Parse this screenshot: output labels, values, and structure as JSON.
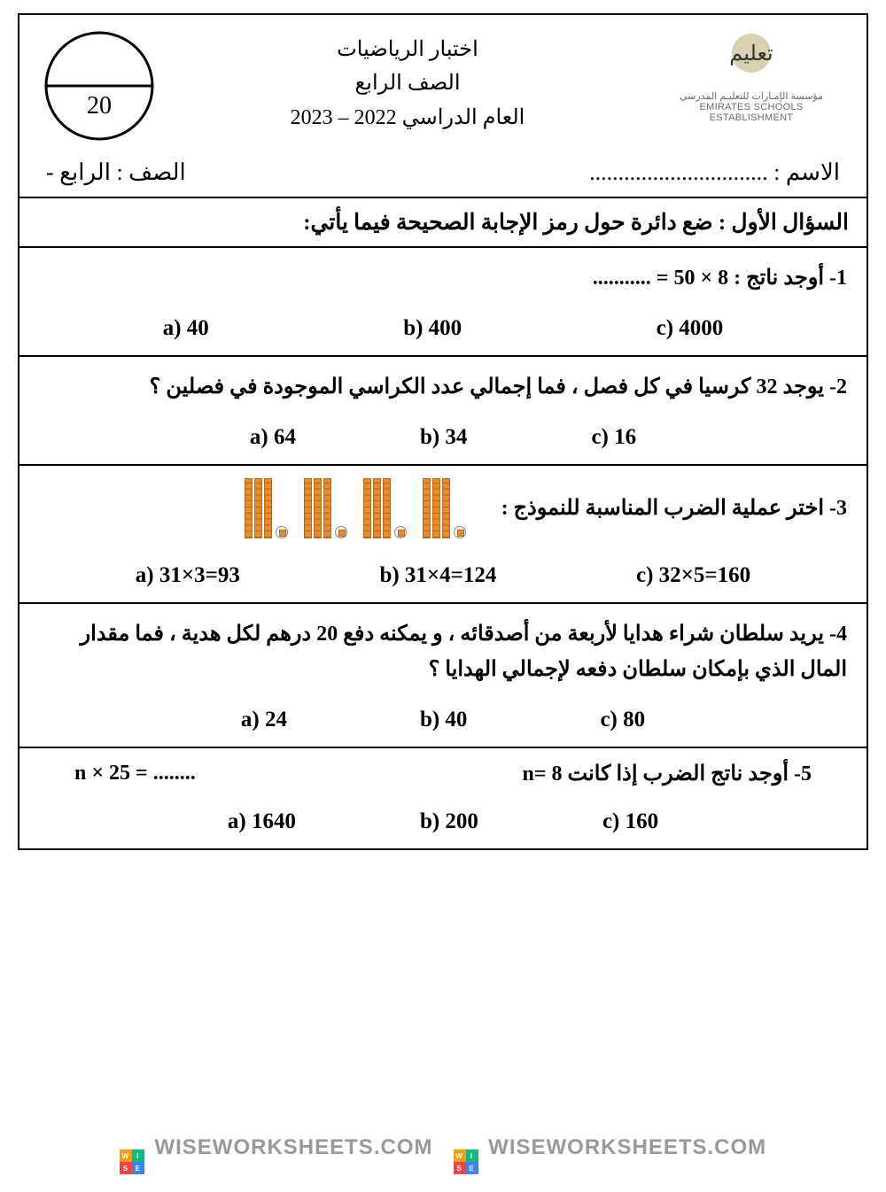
{
  "header": {
    "title1": "اختبار الرياضيات",
    "title2": "الصف الرابع",
    "title3": "العام الدراسي 2022 – 2023",
    "score_total": "20",
    "logo_label": "تعليم",
    "logo_sub_ar": "مؤسسة الإمـارات للتعليـم المدرسي",
    "logo_sub_en": "EMIRATES SCHOOLS ESTABLISHMENT"
  },
  "name_row": {
    "name_label": "الاسم : ...............................",
    "class_label": "الصف : الرابع  -"
  },
  "section": {
    "q1_heading": "السؤال الأول : ضع دائرة حول رمز الإجابة الصحيحة فيما يأتي:"
  },
  "q1": {
    "text": "1- أوجد ناتج :    ........... = 50 × 8",
    "a": "a) 40",
    "b": "b)  400",
    "c": "c)  4000"
  },
  "q2": {
    "text": "2- يوجد 32 كرسيا في كل فصل ، فما إجمالي عدد الكراسي الموجودة في فصلين ؟",
    "a": "a) 64",
    "b": "b) 34",
    "c": "c) 16"
  },
  "q3": {
    "text": "3- اختر عملية الضرب المناسبة للنموذج :",
    "groups": 4,
    "tens_per_group": 3,
    "ones_per_group": 1,
    "a": "a)  31×3=93",
    "b": "b) 31×4=124",
    "c": "c) 32×5=160"
  },
  "q4": {
    "text": "4- يريد سلطان شراء هدايا لأربعة من أصدقائه ، و يمكنه دفع 20 درهم لكل هدية ، فما مقدار المال الذي بإمكان سلطان دفعه لإجمالي الهدايا ؟",
    "a": "a)  24",
    "b": "b)  40",
    "c": "c)  80"
  },
  "q5": {
    "text": "5- أوجد ناتج الضرب إذا كانت  n= 8",
    "equation": "n  ×   25 =  ........",
    "a": "a)  1640",
    "b": "b)  200",
    "c": "c)  160"
  },
  "watermark": {
    "text": "WISEWORKSHEETS.COM",
    "badge": [
      "W",
      "I",
      "S",
      "E"
    ]
  },
  "colors": {
    "block_fill": "#e88b2e",
    "block_border": "#b86a18",
    "logo_circle": "#d9d0b0"
  }
}
